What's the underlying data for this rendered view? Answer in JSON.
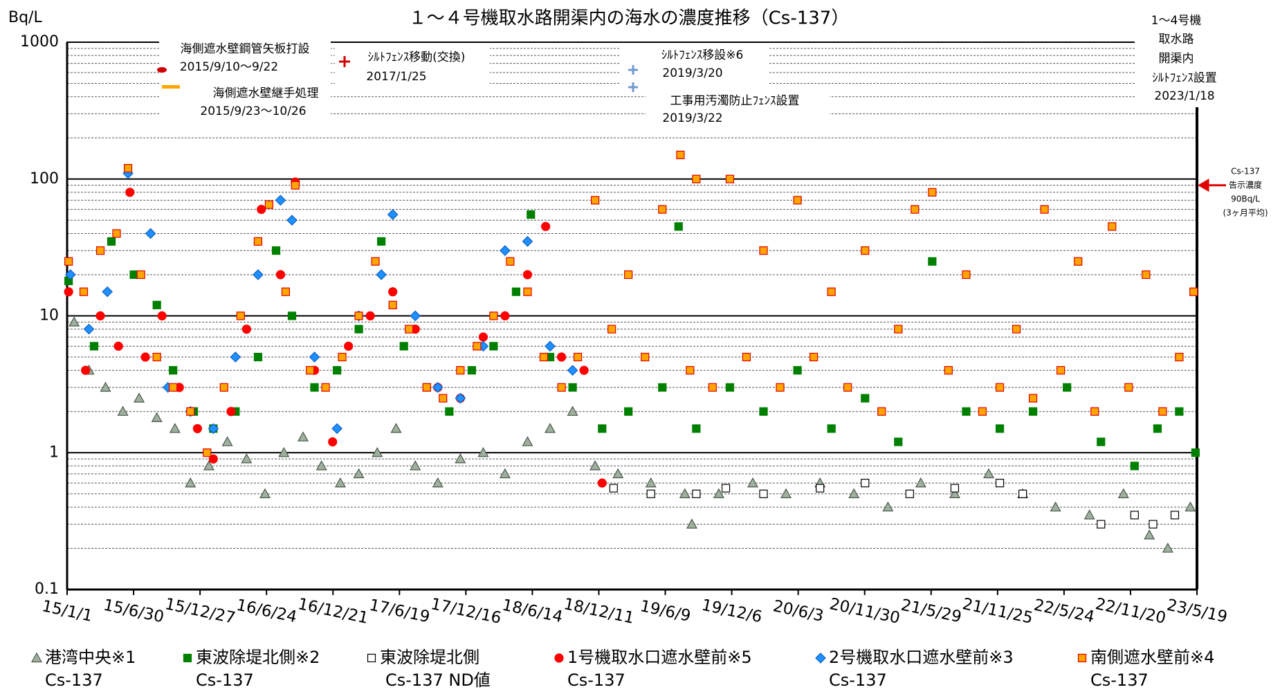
{
  "chart_data": {
    "type": "scatter",
    "title": "１～４号機取水路開渠内の海水の濃度推移（Cs-137）",
    "y_label": "Bq/L",
    "log_scale": true,
    "grid": true,
    "minor_grid": true,
    "ylim": [
      0.1,
      1000
    ],
    "yticks": [
      0.1,
      1,
      10,
      100,
      1000
    ],
    "xlim": [
      "15/1/1",
      "23/5/19"
    ],
    "xticks": [
      "15/1/1",
      "15/6/30",
      "15/12/27",
      "16/6/24",
      "16/12/21",
      "17/6/19",
      "17/12/16",
      "18/6/14",
      "18/12/11",
      "19/6/9",
      "19/12/6",
      "20/6/3",
      "20/11/30",
      "21/5/29",
      "21/11/25",
      "22/5/24",
      "22/11/20",
      "23/5/19"
    ],
    "limit": 90,
    "limit_color": "#e00000",
    "limit_note": [
      "Cs-137",
      "告示濃度",
      "90Bq/L",
      "(3ヶ月平均)"
    ],
    "annotations": [
      "海側遮水壁鋼管矢板打設",
      "2015/9/10～9/22",
      "海側遮水壁継手処理",
      "2015/9/23～10/26",
      "ｼﾙﾄﾌｪﾝｽ移動(交換)",
      "2017/1/25",
      "ｼﾙﾄﾌｪﾝｽ移設※6",
      "2019/3/20",
      "工事用汚濁防止ﾌｪﾝｽ設置",
      "2019/3/22",
      "1～4号機",
      "取水路",
      "開渠内",
      "ｼﾙﾄﾌｪﾝｽ設置",
      "2023/1/18"
    ],
    "series": [
      {
        "name": "港湾中央※1",
        "sub_label": "Cs-137",
        "marker": "triangle",
        "color": "#9fb09f",
        "edge": "#4a5a4a",
        "x": [
          "15/1/20",
          "15/3/1",
          "15/4/15",
          "15/6/1",
          "15/7/15",
          "15/9/1",
          "15/10/20",
          "15/12/1",
          "16/1/20",
          "16/3/10",
          "16/5/1",
          "16/6/20",
          "16/8/10",
          "16/10/1",
          "16/11/20",
          "17/1/10",
          "17/3/1",
          "17/4/20",
          "17/6/10",
          "17/8/1",
          "17/10/1",
          "17/12/1",
          "18/2/1",
          "18/4/1",
          "18/6/1",
          "18/8/1",
          "18/10/1",
          "18/12/1",
          "19/2/1",
          "19/5/1",
          "19/8/1",
          "19/8/20",
          "19/11/1",
          "20/2/1",
          "20/5/1",
          "20/8/1",
          "20/11/1",
          "21/2/1",
          "21/5/1",
          "21/8/1",
          "21/11/1",
          "22/2/1",
          "22/5/1",
          "22/8/1",
          "22/11/1",
          "23/1/10",
          "23/3/1",
          "23/5/1"
        ],
        "values": [
          9,
          4,
          3,
          2,
          2.5,
          1.8,
          1.5,
          0.6,
          0.8,
          1.2,
          0.9,
          0.5,
          1,
          1.3,
          0.8,
          0.6,
          0.7,
          1,
          1.5,
          0.8,
          0.6,
          0.9,
          1,
          0.7,
          1.2,
          1.5,
          2,
          0.8,
          0.7,
          0.6,
          0.5,
          0.3,
          0.5,
          0.6,
          0.5,
          0.6,
          0.5,
          0.4,
          0.6,
          0.5,
          0.7,
          0.5,
          0.4,
          0.35,
          0.5,
          0.25,
          0.2,
          0.4
        ]
      },
      {
        "name": "東波除堤北側※2",
        "sub_label": "Cs-137",
        "marker": "square",
        "color": "#008000",
        "edge": "#008000",
        "x": [
          "15/1/5",
          "15/3/15",
          "15/5/1",
          "15/7/1",
          "15/9/1",
          "15/10/15",
          "15/12/10",
          "16/2/1",
          "16/4/1",
          "16/6/1",
          "16/7/20",
          "16/9/1",
          "16/11/1",
          "17/1/1",
          "17/3/1",
          "17/5/1",
          "17/7/1",
          "17/9/1",
          "17/11/1",
          "18/1/1",
          "18/3/1",
          "18/5/1",
          "18/6/10",
          "18/8/1",
          "18/10/1",
          "18/12/20",
          "19/3/1",
          "19/6/1",
          "19/7/15",
          "19/9/1",
          "19/12/1",
          "20/3/1",
          "20/6/1",
          "20/9/1",
          "20/12/1",
          "21/3/1",
          "21/6/1",
          "21/9/1",
          "21/12/1",
          "22/3/1",
          "22/6/1",
          "22/9/1",
          "22/12/1",
          "23/2/1",
          "23/4/1",
          "23/5/15"
        ],
        "values": [
          18,
          6,
          35,
          20,
          12,
          4,
          2,
          1.5,
          2,
          5,
          30,
          10,
          3,
          4,
          8,
          35,
          6,
          3,
          2,
          4,
          6,
          15,
          55,
          5,
          3,
          1.5,
          2,
          3,
          45,
          1.5,
          3,
          2,
          4,
          1.5,
          2.5,
          1.2,
          25,
          2,
          1.5,
          2,
          3,
          1.2,
          0.8,
          1.5,
          2,
          1
        ]
      },
      {
        "name": "東波除堤北側",
        "sub_label": "Cs-137 ND値",
        "marker": "open-square",
        "color": "#ffffff",
        "edge": "#000000",
        "x": [
          "19/1/20",
          "19/5/1",
          "19/9/1",
          "19/11/20",
          "20/3/1",
          "20/8/1",
          "20/12/1",
          "21/4/1",
          "21/8/1",
          "21/12/1",
          "22/2/1",
          "22/9/1",
          "22/12/1",
          "23/1/20",
          "23/3/20"
        ],
        "values": [
          0.55,
          0.5,
          0.5,
          0.55,
          0.5,
          0.55,
          0.6,
          0.5,
          0.55,
          0.6,
          0.5,
          0.3,
          0.35,
          0.3,
          0.35
        ]
      },
      {
        "name": "1号機取水口遮水壁前※5",
        "sub_label": "Cs-137",
        "marker": "circle",
        "color": "#ff0000",
        "edge": "#ff0000",
        "x": [
          "15/1/5",
          "15/2/20",
          "15/4/1",
          "15/5/20",
          "15/6/20",
          "15/8/1",
          "15/9/15",
          "15/11/1",
          "15/12/20",
          "16/2/1",
          "16/3/20",
          "16/5/1",
          "16/6/10",
          "16/8/1",
          "16/9/10",
          "16/11/1",
          "16/12/20",
          "17/2/1",
          "17/4/1",
          "17/6/1",
          "17/8/1",
          "17/10/1",
          "17/12/1",
          "18/2/1",
          "18/4/1",
          "18/6/1",
          "18/7/20",
          "18/9/1",
          "18/11/1",
          "18/12/20"
        ],
        "values": [
          15,
          4,
          10,
          6,
          80,
          5,
          10,
          3,
          1.5,
          0.9,
          2,
          8,
          60,
          20,
          95,
          4,
          1.2,
          6,
          10,
          15,
          8,
          3,
          2.5,
          7,
          10,
          20,
          45,
          5,
          4,
          0.6
        ]
      },
      {
        "name": "2号機取水口遮水壁前※3",
        "sub_label": "Cs-137",
        "marker": "diamond",
        "color": "#1e90ff",
        "edge": "#1060c0",
        "x": [
          "15/1/10",
          "15/3/1",
          "15/4/20",
          "15/6/15",
          "15/8/15",
          "15/10/1",
          "15/12/1",
          "16/2/1",
          "16/4/1",
          "16/6/1",
          "16/8/1",
          "16/9/1",
          "16/11/1",
          "17/1/1",
          "17/3/1",
          "17/5/1",
          "17/6/1",
          "17/8/1",
          "17/10/1",
          "17/12/1",
          "18/2/1",
          "18/4/1",
          "18/6/1",
          "18/8/1",
          "18/10/1"
        ],
        "values": [
          20,
          8,
          15,
          110,
          40,
          3,
          2,
          1.5,
          5,
          20,
          70,
          50,
          5,
          1.5,
          10,
          20,
          55,
          10,
          3,
          2.5,
          6,
          30,
          35,
          6,
          4
        ]
      },
      {
        "name": "南側遮水壁前※4",
        "sub_label": "Cs-137",
        "marker": "square",
        "color": "#ffa500",
        "edge": "#e00000",
        "x": [
          "15/1/5",
          "15/2/15",
          "15/4/1",
          "15/5/15",
          "15/6/15",
          "15/7/20",
          "15/9/1",
          "15/10/15",
          "15/12/1",
          "16/1/15",
          "16/3/1",
          "16/4/15",
          "16/6/1",
          "16/7/1",
          "16/8/15",
          "16/9/10",
          "16/10/20",
          "16/12/1",
          "17/1/15",
          "17/3/1",
          "17/4/15",
          "17/6/1",
          "17/7/15",
          "17/9/1",
          "17/10/15",
          "17/12/1",
          "18/1/15",
          "18/3/1",
          "18/4/15",
          "18/6/1",
          "18/7/15",
          "18/9/1",
          "18/10/15",
          "18/12/1",
          "19/1/15",
          "19/3/1",
          "19/4/15",
          "19/6/1",
          "19/7/20",
          "19/8/15",
          "19/9/1",
          "19/10/15",
          "19/12/1",
          "20/1/15",
          "20/3/1",
          "20/4/15",
          "20/6/1",
          "20/7/15",
          "20/9/1",
          "20/10/15",
          "20/12/1",
          "21/1/15",
          "21/3/1",
          "21/4/15",
          "21/6/1",
          "21/7/15",
          "21/9/1",
          "21/10/15",
          "21/12/1",
          "22/1/15",
          "22/3/1",
          "22/4/1",
          "22/5/15",
          "22/7/1",
          "22/8/15",
          "22/10/1",
          "22/11/15",
          "23/1/1",
          "23/2/15",
          "23/4/1",
          "23/5/10"
        ],
        "values": [
          25,
          15,
          30,
          40,
          120,
          20,
          5,
          3,
          2,
          1,
          3,
          10,
          35,
          65,
          15,
          90,
          4,
          3,
          5,
          10,
          25,
          12,
          8,
          3,
          2.5,
          4,
          6,
          10,
          25,
          15,
          5,
          3,
          5,
          70,
          8,
          20,
          5,
          60,
          150,
          4,
          100,
          3,
          100,
          5,
          30,
          3,
          70,
          5,
          15,
          3,
          30,
          2,
          8,
          60,
          80,
          4,
          20,
          2,
          3,
          8,
          2.5,
          60,
          4,
          25,
          2,
          45,
          3,
          20,
          2,
          5,
          15
        ]
      }
    ]
  }
}
